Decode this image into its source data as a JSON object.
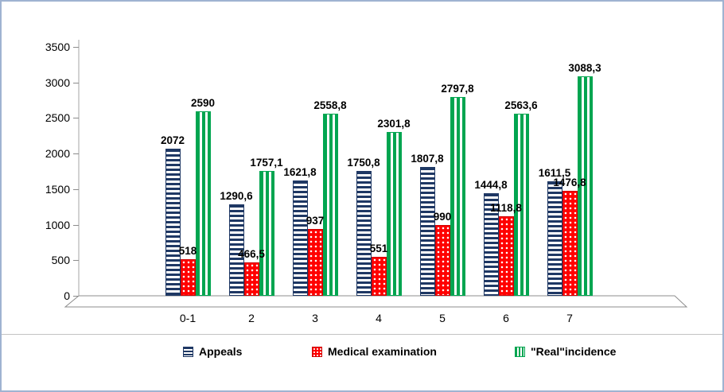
{
  "chart_data": {
    "type": "bar",
    "categories": [
      "0-1",
      "2",
      "3",
      "4",
      "5",
      "6",
      "7"
    ],
    "series": [
      {
        "name": "Appeals",
        "color": "#1F3864",
        "pattern": "horizontal-stripes",
        "values": [
          2072,
          1290.6,
          1621.8,
          1750.8,
          1807.8,
          1444.8,
          1611.5
        ],
        "labels": [
          "2072",
          "1290,6",
          "1621,8",
          "1750,8",
          "1807,8",
          "1444,8",
          "1611,5"
        ]
      },
      {
        "name": "Medical examination",
        "color": "#FF0000",
        "pattern": "dots",
        "values": [
          518,
          466.5,
          937,
          551,
          990,
          1118.8,
          1476.8
        ],
        "labels": [
          "518",
          "466,5",
          "937",
          "551",
          "990",
          "1118,8",
          "1476,8"
        ]
      },
      {
        "name": "\"Real\"incidence",
        "color": "#00A550",
        "pattern": "vertical-stripes",
        "values": [
          2590,
          1757.1,
          2558.8,
          2301.8,
          2797.8,
          2563.6,
          3088.3
        ],
        "labels": [
          "2590",
          "1757,1",
          "2558,8",
          "2301,8",
          "2797,8",
          "2563,6",
          "3088,3"
        ]
      }
    ],
    "ylim": [
      0,
      3500
    ],
    "yticks": [
      0,
      500,
      1000,
      1500,
      2000,
      2500,
      3000,
      3500
    ],
    "grid": false,
    "legend_position": "bottom"
  }
}
